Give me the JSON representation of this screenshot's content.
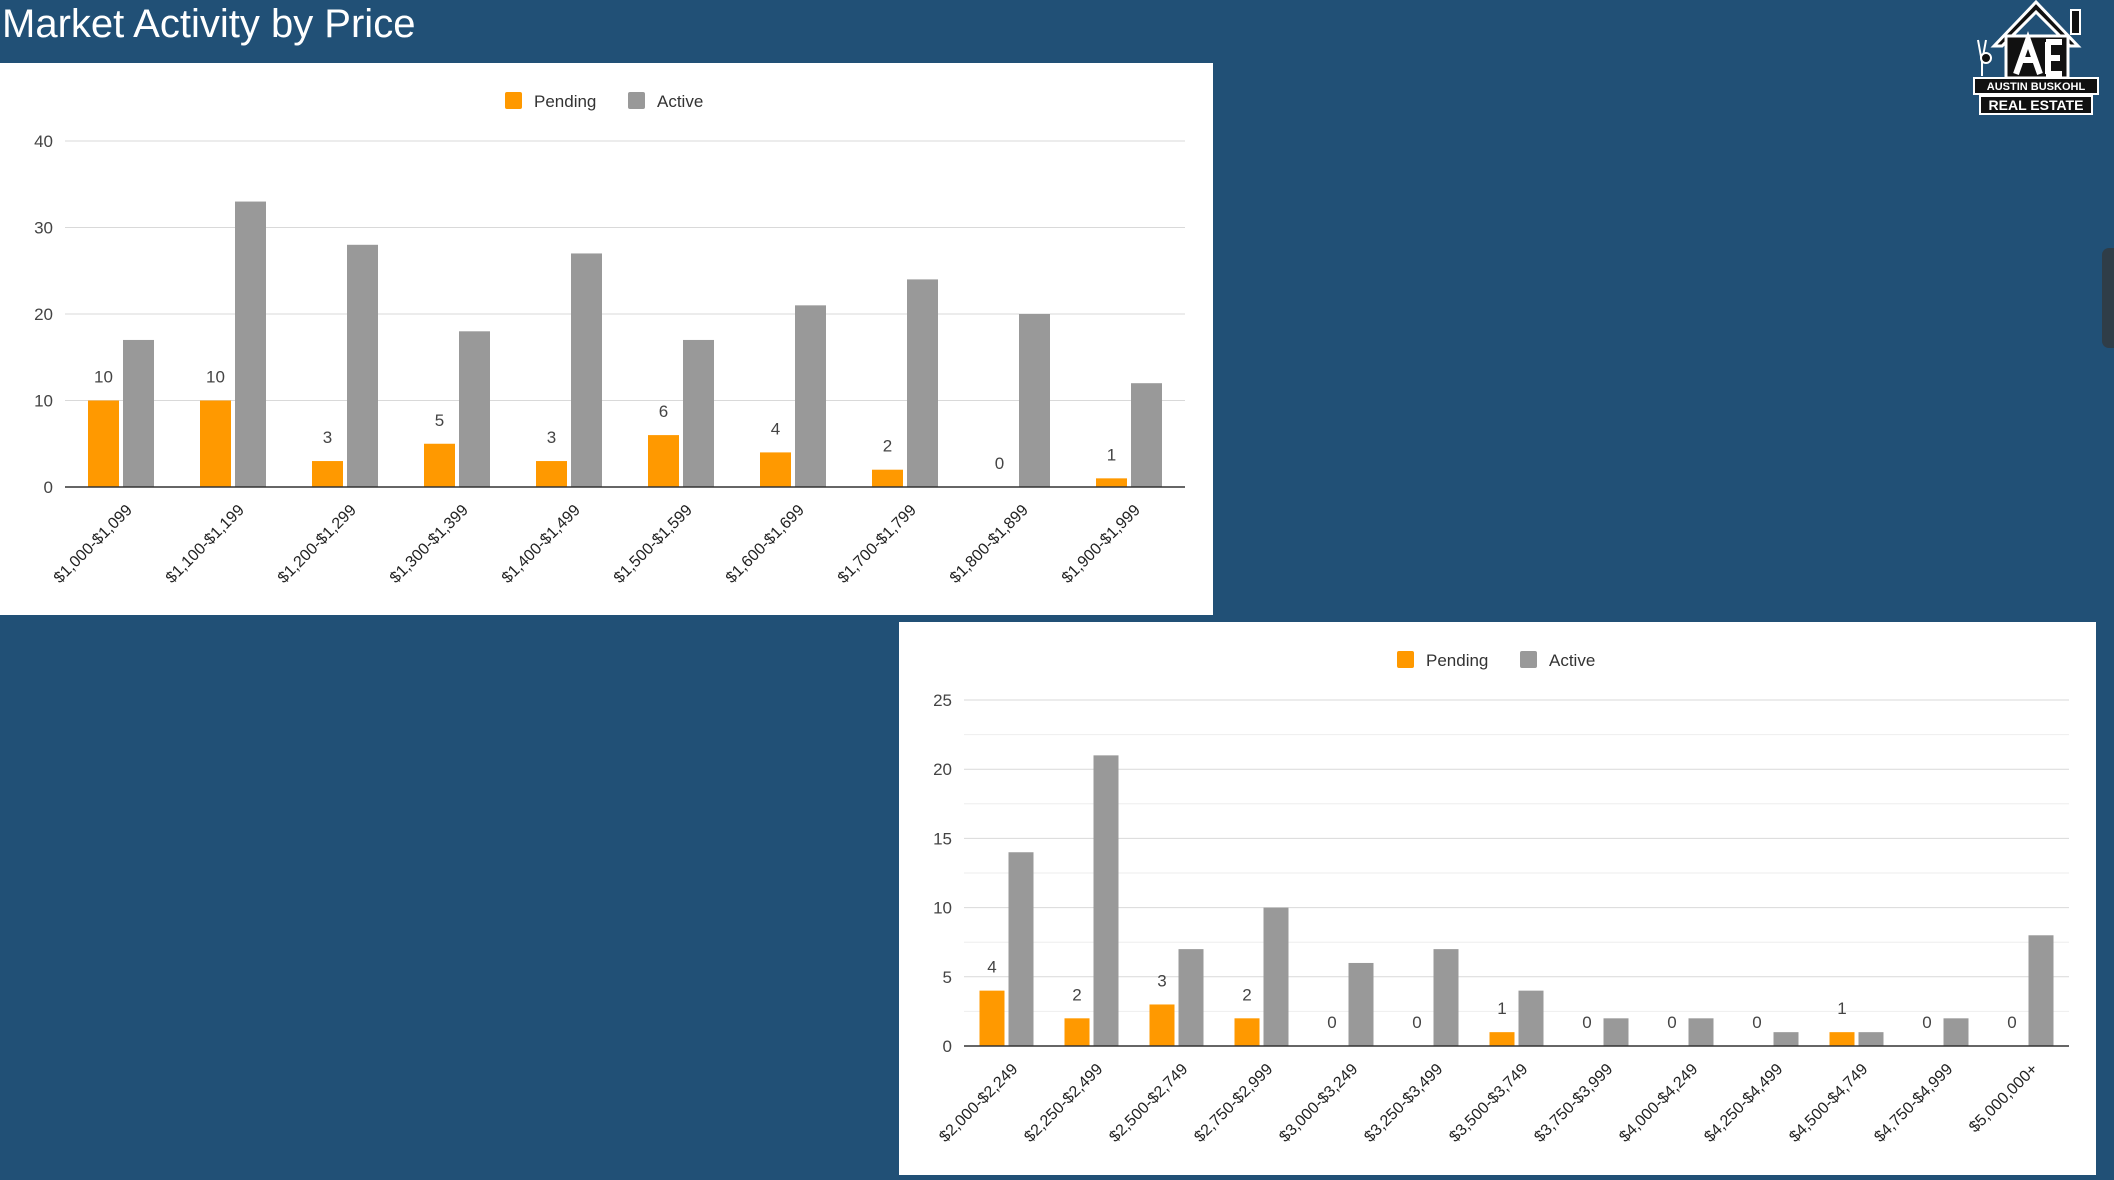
{
  "page": {
    "title": "Market Activity by Price"
  },
  "logo": {
    "line1": "AUSTIN BUSKOHL",
    "line2": "REAL ESTATE",
    "icon": "house-logo-icon"
  },
  "colors": {
    "background": "#215076",
    "pending": "#FF9900",
    "active": "#999999",
    "grid": "#d9d9d9",
    "label": "#444444"
  },
  "chart_data": [
    {
      "type": "bar",
      "categories": [
        "$1,000-$1,099",
        "$1,100-$1,199",
        "$1,200-$1,299",
        "$1,300-$1,399",
        "$1,400-$1,499",
        "$1,500-$1,599",
        "$1,600-$1,699",
        "$1,700-$1,799",
        "$1,800-$1,899",
        "$1,900-$1,999"
      ],
      "series": [
        {
          "name": "Pending",
          "values": [
            10,
            10,
            3,
            5,
            3,
            6,
            4,
            2,
            0,
            1
          ],
          "data_labels": true
        },
        {
          "name": "Active",
          "values": [
            17,
            33,
            28,
            18,
            27,
            17,
            21,
            24,
            20,
            12
          ],
          "data_labels": false
        }
      ],
      "ylim": [
        0,
        40
      ],
      "yticks": [
        0,
        10,
        20,
        30,
        40
      ],
      "minor_gridlines": false,
      "legend": "top-center",
      "xlabel": "",
      "ylabel": "",
      "title": ""
    },
    {
      "type": "bar",
      "categories": [
        "$2,000-$2,249",
        "$2,250-$2,499",
        "$2,500-$2,749",
        "$2,750-$2,999",
        "$3,000-$3,249",
        "$3,250-$3,499",
        "$3,500-$3,749",
        "$3,750-$3,999",
        "$4,000-$4,249",
        "$4,250-$4,499",
        "$4,500-$4,749",
        "$4,750-$4,999",
        "$5,000,000+"
      ],
      "series": [
        {
          "name": "Pending",
          "values": [
            4,
            2,
            3,
            2,
            0,
            0,
            1,
            0,
            0,
            0,
            1,
            0,
            0
          ],
          "data_labels": true
        },
        {
          "name": "Active",
          "values": [
            14,
            21,
            7,
            10,
            6,
            7,
            4,
            2,
            2,
            1,
            1,
            2,
            8
          ],
          "data_labels": false
        }
      ],
      "ylim": [
        0,
        25
      ],
      "yticks": [
        0,
        5,
        10,
        15,
        20,
        25
      ],
      "minor_gridlines": true,
      "legend": "top-center",
      "xlabel": "",
      "ylabel": "",
      "title": ""
    }
  ]
}
